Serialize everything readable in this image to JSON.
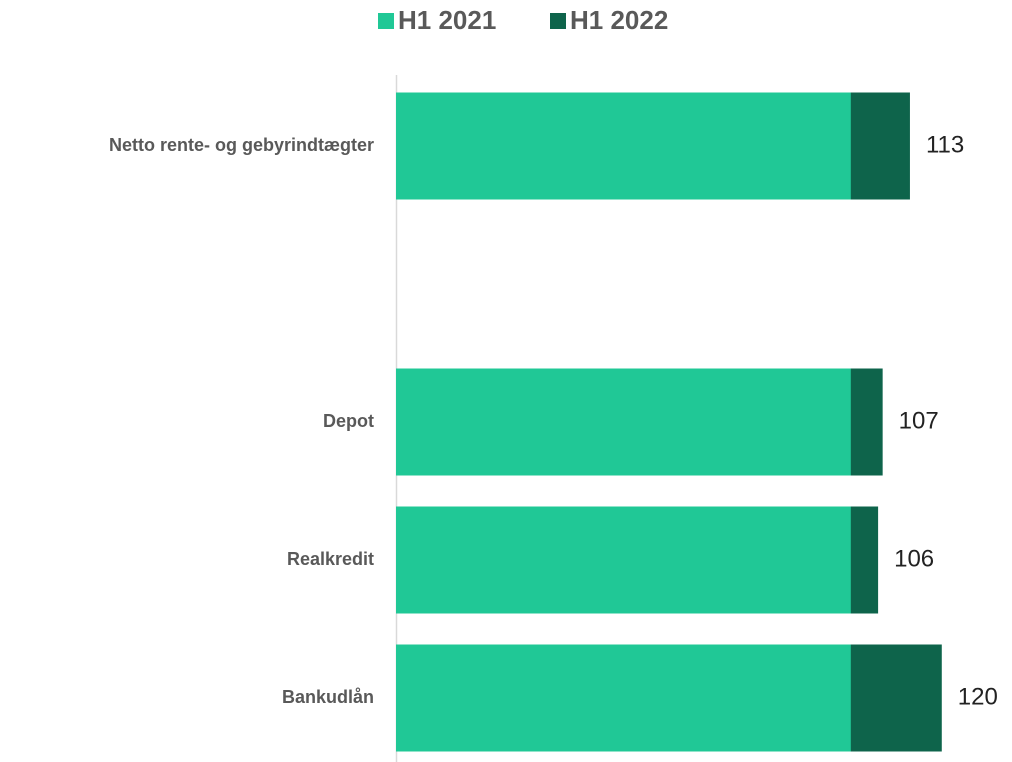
{
  "chart_data": {
    "type": "bar",
    "orientation": "horizontal",
    "overlap": true,
    "categories": [
      "Netto rente- og gebyrindtægter",
      null,
      "Depot",
      "Realkredit",
      "Bankudlån"
    ],
    "series": [
      {
        "name": "H1 2021",
        "color": "#20c896",
        "values": [
          100,
          null,
          100,
          100,
          100
        ]
      },
      {
        "name": "H1 2022",
        "color": "#0e644b",
        "values": [
          113,
          null,
          107,
          106,
          120
        ],
        "data_labels": true
      }
    ],
    "xlim": [
      0,
      135
    ],
    "legend": "top"
  }
}
